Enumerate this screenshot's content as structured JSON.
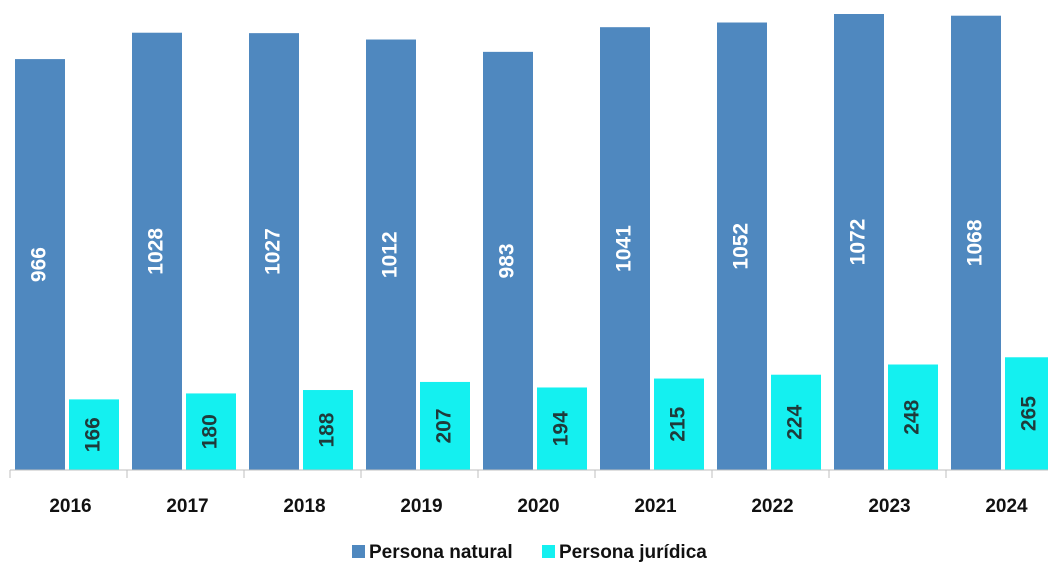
{
  "chart_data": {
    "type": "bar",
    "categories": [
      "2016",
      "2017",
      "2018",
      "2019",
      "2020",
      "2021",
      "2022",
      "2023",
      "2024"
    ],
    "series": [
      {
        "name": "Persona natural",
        "color": "#4f88bf",
        "values": [
          966,
          1028,
          1027,
          1012,
          983,
          1041,
          1052,
          1072,
          1068
        ]
      },
      {
        "name": "Persona jurídica",
        "color": "#14f0f0",
        "values": [
          166,
          180,
          188,
          207,
          194,
          215,
          224,
          248,
          265
        ]
      }
    ],
    "ylim": [
      0,
      1072
    ],
    "legend": "bottom"
  }
}
